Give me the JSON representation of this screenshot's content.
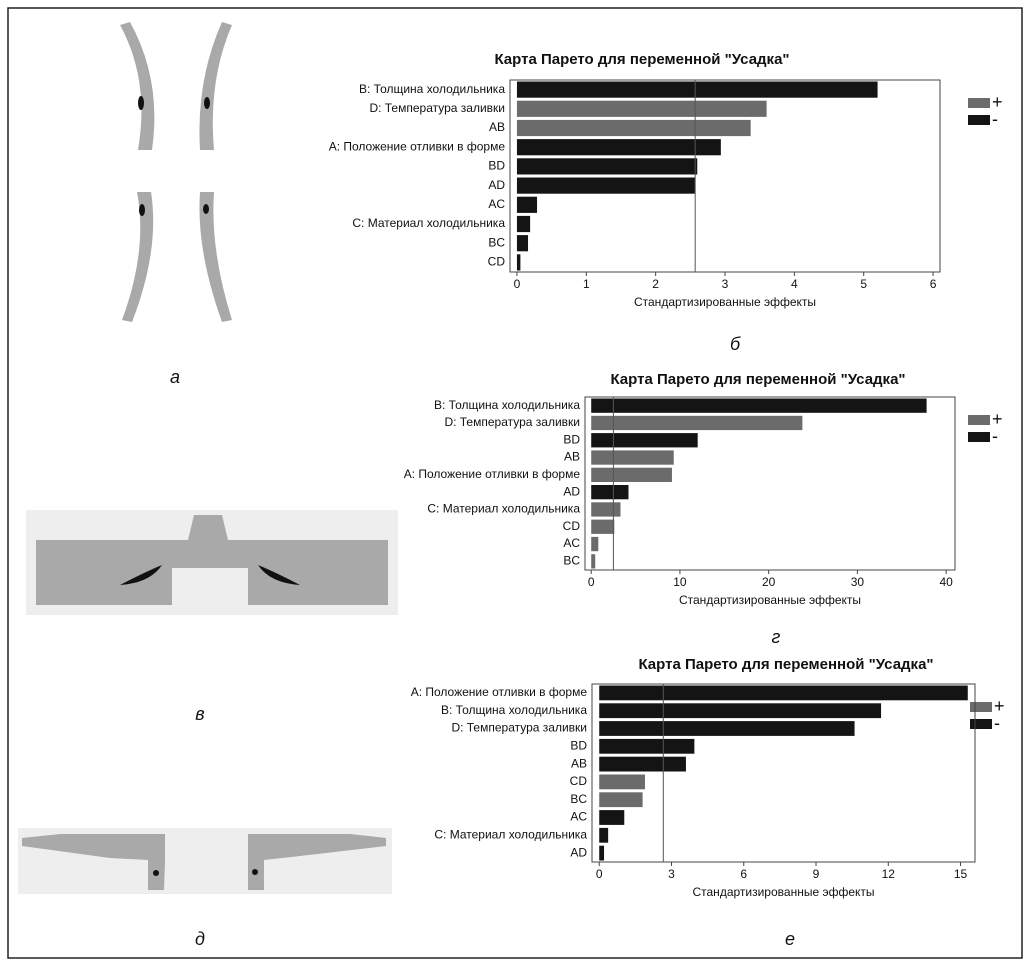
{
  "panel_labels": [
    "а",
    "б",
    "в",
    "г",
    "д",
    "е"
  ],
  "chart_data": [
    {
      "type": "bar",
      "orientation": "horizontal",
      "title": "Карта Парето для переменной \"Усадка\"",
      "xlabel": "Стандартизированные эффекты",
      "categories": [
        "B: Толщина холодильника",
        "D: Температура заливки",
        "AB",
        "A: Положение отливки в форме",
        "BD",
        "AD",
        "AC",
        "C: Материал холодильника",
        "BC",
        "CD"
      ],
      "series": [
        {
          "name": "+",
          "color": "#6b6b6b",
          "values": [
            null,
            3.6,
            3.37,
            null,
            null,
            null,
            null,
            null,
            null,
            null
          ]
        },
        {
          "name": "-",
          "color": "#141414",
          "values": [
            5.2,
            null,
            null,
            2.94,
            2.6,
            2.57,
            0.29,
            0.19,
            0.16,
            0.05
          ]
        }
      ],
      "ref_line": 2.57,
      "xlim": [
        -0.1,
        6.1
      ],
      "xticks": [
        0,
        1,
        2,
        3,
        4,
        5,
        6
      ]
    },
    {
      "type": "bar",
      "orientation": "horizontal",
      "title": "Карта Парето для переменной \"Усадка\"",
      "xlabel": "Стандартизированные эффекты",
      "categories": [
        "B: Толщина холодильника",
        "D: Температура заливки",
        "BD",
        "AB",
        "A: Положение отливки в форме",
        "AD",
        "C: Материал холодильника",
        "CD",
        "AC",
        "BC"
      ],
      "series": [
        {
          "name": "+",
          "color": "#6b6b6b",
          "values": [
            null,
            23.8,
            null,
            9.3,
            9.1,
            null,
            3.3,
            2.6,
            0.8,
            0.45
          ]
        },
        {
          "name": "-",
          "color": "#141414",
          "values": [
            37.8,
            null,
            12.0,
            null,
            null,
            4.2,
            null,
            null,
            null,
            null
          ]
        }
      ],
      "ref_line": 2.5,
      "xlim": [
        -0.7,
        41
      ],
      "xticks": [
        0,
        10,
        20,
        30,
        40
      ]
    },
    {
      "type": "bar",
      "orientation": "horizontal",
      "title": "Карта Парето для переменной \"Усадка\"",
      "xlabel": "Стандартизированные эффекты",
      "categories": [
        "A: Положение отливки в форме",
        "B: Толщина холодильника",
        "D: Температура заливки",
        "BD",
        "AB",
        "CD",
        "BC",
        "AC",
        "C: Материал холодильника",
        "AD"
      ],
      "series": [
        {
          "name": "+",
          "color": "#6b6b6b",
          "values": [
            null,
            null,
            null,
            null,
            null,
            1.9,
            1.8,
            null,
            null,
            null
          ]
        },
        {
          "name": "-",
          "color": "#141414",
          "values": [
            15.3,
            11.7,
            10.6,
            3.95,
            3.6,
            null,
            null,
            1.04,
            0.37,
            0.2
          ]
        }
      ],
      "ref_line": 2.66,
      "xlim": [
        -0.3,
        15.6
      ],
      "xticks": [
        0,
        3,
        6,
        9,
        12,
        15
      ]
    }
  ]
}
